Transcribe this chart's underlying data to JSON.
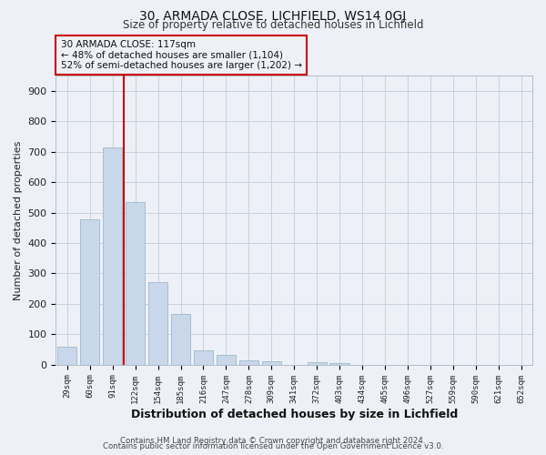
{
  "title_line1": "30, ARMADA CLOSE, LICHFIELD, WS14 0GJ",
  "title_line2": "Size of property relative to detached houses in Lichfield",
  "xlabel": "Distribution of detached houses by size in Lichfield",
  "ylabel": "Number of detached properties",
  "bar_labels": [
    "29sqm",
    "60sqm",
    "91sqm",
    "122sqm",
    "154sqm",
    "185sqm",
    "216sqm",
    "247sqm",
    "278sqm",
    "309sqm",
    "341sqm",
    "372sqm",
    "403sqm",
    "434sqm",
    "465sqm",
    "496sqm",
    "527sqm",
    "559sqm",
    "590sqm",
    "621sqm",
    "652sqm"
  ],
  "bar_values": [
    60,
    478,
    714,
    536,
    270,
    165,
    46,
    33,
    15,
    11,
    0,
    7,
    6,
    0,
    0,
    0,
    0,
    0,
    0,
    0,
    0
  ],
  "bar_color": "#c8d8ea",
  "bar_edge_color": "#9fb8cc",
  "grid_color": "#c8d0da",
  "bg_color": "#edf1f7",
  "vline_color": "#cc0000",
  "vline_bar_index": 3,
  "annotation_title": "30 ARMADA CLOSE: 117sqm",
  "annotation_line2": "← 48% of detached houses are smaller (1,104)",
  "annotation_line3": "52% of semi-detached houses are larger (1,202) →",
  "annotation_box_color": "#cc0000",
  "ylim": [
    0,
    950
  ],
  "yticks": [
    0,
    100,
    200,
    300,
    400,
    500,
    600,
    700,
    800,
    900
  ],
  "footer_line1": "Contains HM Land Registry data © Crown copyright and database right 2024.",
  "footer_line2": "Contains public sector information licensed under the Open Government Licence v3.0."
}
